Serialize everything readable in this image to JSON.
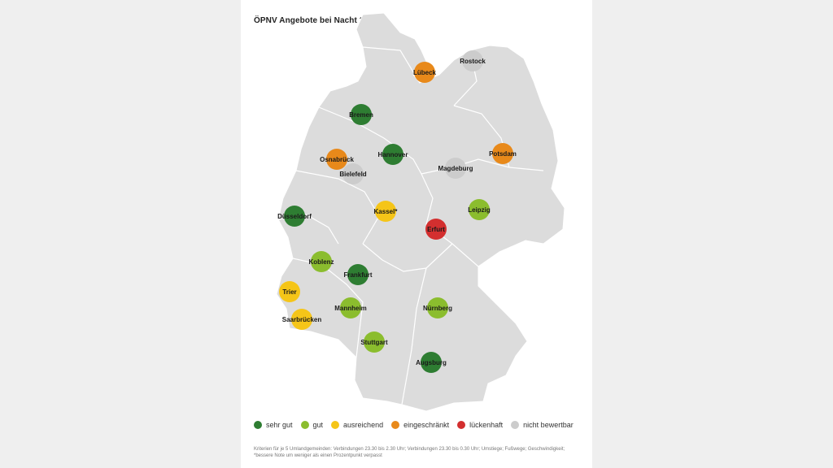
{
  "map": {
    "title": "ÖPNV Angebote bei Nacht 2025",
    "categories": {
      "sehr_gut": {
        "label": "sehr gut",
        "color": "#2e7d32"
      },
      "gut": {
        "label": "gut",
        "color": "#8bbd2e"
      },
      "ausreichend": {
        "label": "ausreichend",
        "color": "#f5c518"
      },
      "eingeschraenkt": {
        "label": "eingeschränkt",
        "color": "#e8891a"
      },
      "lueckenhaft": {
        "label": "lückenhaft",
        "color": "#d32f2f"
      },
      "nicht_bewertbar": {
        "label": "nicht bewertbar",
        "color": "#cccccc"
      }
    },
    "cities": [
      {
        "name": "Lübeck",
        "rating": "eingeschraenkt"
      },
      {
        "name": "Rostock",
        "rating": "nicht_bewertbar"
      },
      {
        "name": "Bremen",
        "rating": "sehr_gut"
      },
      {
        "name": "Hannover",
        "rating": "sehr_gut"
      },
      {
        "name": "Osnabrück",
        "rating": "eingeschraenkt"
      },
      {
        "name": "Bielefeld",
        "rating": "nicht_bewertbar"
      },
      {
        "name": "Potsdam",
        "rating": "eingeschraenkt"
      },
      {
        "name": "Magdeburg",
        "rating": "nicht_bewertbar"
      },
      {
        "name": "Kassel*",
        "rating": "ausreichend"
      },
      {
        "name": "Leipzig",
        "rating": "gut"
      },
      {
        "name": "Düsseldorf",
        "rating": "sehr_gut"
      },
      {
        "name": "Erfurt",
        "rating": "lueckenhaft"
      },
      {
        "name": "Koblenz",
        "rating": "gut"
      },
      {
        "name": "Frankfurt",
        "rating": "sehr_gut"
      },
      {
        "name": "Trier",
        "rating": "ausreichend"
      },
      {
        "name": "Mannheim",
        "rating": "gut"
      },
      {
        "name": "Nürnberg",
        "rating": "gut"
      },
      {
        "name": "Saarbrücken",
        "rating": "ausreichend"
      },
      {
        "name": "Stuttgart",
        "rating": "gut"
      },
      {
        "name": "Augsburg",
        "rating": "sehr_gut"
      }
    ],
    "footnote": "Kriterien für je 5 Umlandgemeinden: Verbindungen 23.30 bis 2.30 Uhr; Verbindungen 23.30 bis 0.30 Uhr; Umstiege; Fußwege; Geschwindigkeit; *bessere Note um weniger als einen Prozentpunkt verpasst"
  }
}
